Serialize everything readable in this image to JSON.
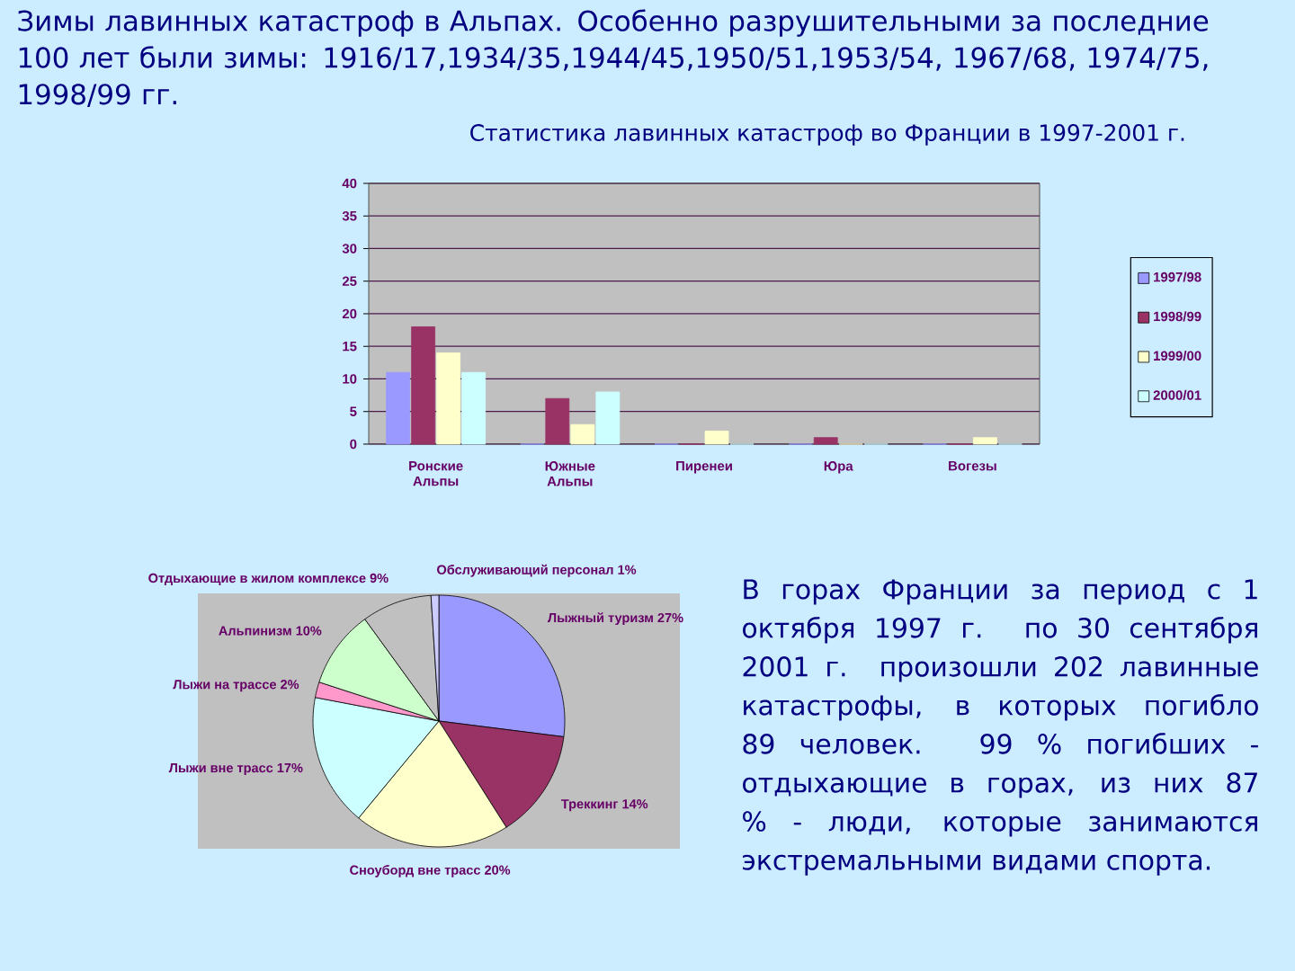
{
  "chart_data": [
    {
      "type": "other",
      "title": "Зимы лавинных катастроф в Альпах. Особенно разрушительными за последние 100 лет были зимы: 1916/17,1934/35,1944/45,1950/51,1953/54, 1967/68, 1974/75, 1998/99 гг."
    },
    {
      "type": "bar",
      "title": "Статистика лавинных катастроф во Франции в 1997-2001 г.",
      "categories": [
        "Ронские Альпы",
        "Южные Альпы",
        "Пиренеи",
        "Юра",
        "Вогезы"
      ],
      "series": [
        {
          "name": "1997/98",
          "color": "#9999ff",
          "values": [
            11,
            0,
            0,
            0,
            0
          ]
        },
        {
          "name": "1998/99",
          "color": "#993366",
          "values": [
            18,
            7,
            0,
            1,
            0
          ]
        },
        {
          "name": "1999/00",
          "color": "#ffffcc",
          "values": [
            14,
            3,
            2,
            0,
            1
          ]
        },
        {
          "name": "2000/01",
          "color": "#ccffff",
          "values": [
            11,
            8,
            0,
            0,
            0
          ]
        }
      ],
      "ylim": [
        0,
        40
      ],
      "yticks": [
        0,
        5,
        10,
        15,
        20,
        25,
        30,
        35,
        40
      ],
      "grid": "y",
      "legend": "right"
    },
    {
      "type": "pie",
      "categories": [
        "Лыжный туризм",
        "Треккинг",
        "Сноуборд вне трасс",
        "Лыжи вне трасс",
        "Лыжи на трассе",
        "Альпинизм",
        "Отдыхающие в жилом комплексе",
        "Обслуживающий персонал"
      ],
      "values": [
        27,
        14,
        20,
        17,
        2,
        10,
        9,
        1
      ],
      "value_labels": [
        "27%",
        "14%",
        "20%",
        "17%",
        "2%",
        "10%",
        "9%",
        "1%"
      ],
      "colors": [
        "#9999ff",
        "#993366",
        "#ffffcc",
        "#ccffff",
        "#ff99cc",
        "#ccffcc",
        "#c0c0c0",
        "#ccccff"
      ],
      "annotations": [
        "В горах Франции за период с 1 октября 1997 г. по 30 сентября 2001 г. произошли 202 лавинные катастрофы, в которых погибло 89 человек. 99 % погибших - отдыхающие в горах, из них 87 % - люди, которые занимаются экстремальными видами спорта."
      ]
    }
  ]
}
